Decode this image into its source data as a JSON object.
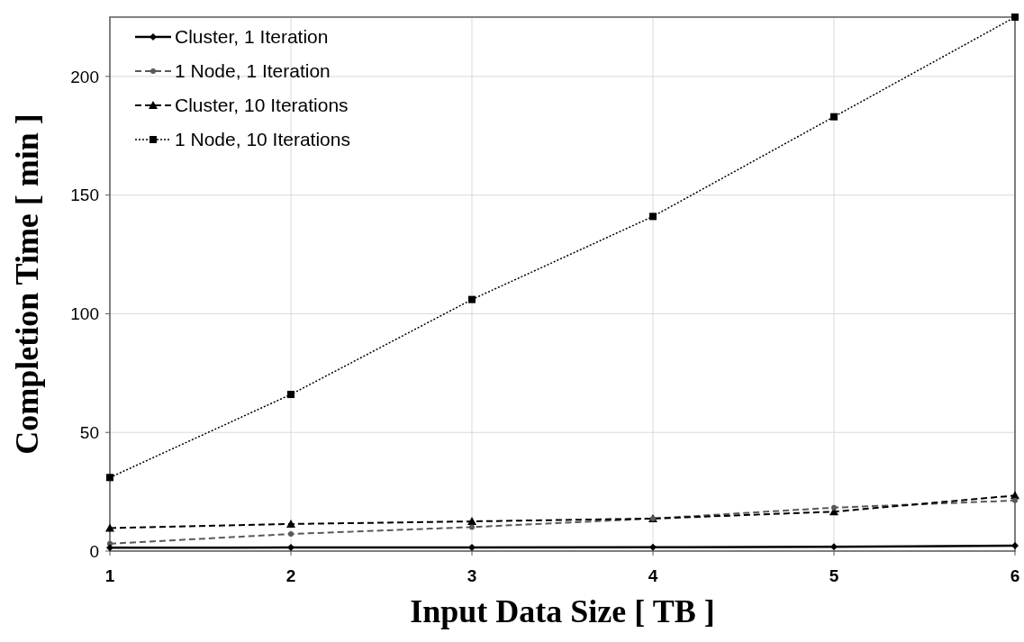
{
  "chart_data": {
    "type": "line",
    "xlabel": "Input  Data  Size  [ TB ]",
    "ylabel": "Completion  Time  [ min ]",
    "x": [
      1,
      2,
      3,
      4,
      5,
      6
    ],
    "xlim": [
      1,
      6
    ],
    "xticks": [
      1,
      2,
      3,
      4,
      5,
      6
    ],
    "ylim": [
      0,
      225
    ],
    "yticks": [
      0,
      50,
      100,
      150,
      200
    ],
    "grid": true,
    "legend": "top left",
    "series": [
      {
        "name": "Cluster, 1 Iteration",
        "color": "#000000",
        "values": [
          1.4,
          1.5,
          1.5,
          1.6,
          1.8,
          2.3
        ],
        "line_style": "solid",
        "marker": "diamond"
      },
      {
        "name": "1 Node, 1 Iteration",
        "color": "#595959",
        "values": [
          3.1,
          7.2,
          10.1,
          13.7,
          18.3,
          21.3
        ],
        "line_style": "dashed",
        "marker": "circle"
      },
      {
        "name": "Cluster, 10 Iterations",
        "color": "#000000",
        "values": [
          9.7,
          11.4,
          12.5,
          13.7,
          16.6,
          23.4
        ],
        "line_style": "dashed",
        "marker": "triangle"
      },
      {
        "name": "1 Node, 10 Iterations",
        "color": "#000000",
        "values": [
          31,
          66,
          106,
          141,
          183,
          225
        ],
        "line_style": "dotted",
        "marker": "square"
      }
    ]
  }
}
